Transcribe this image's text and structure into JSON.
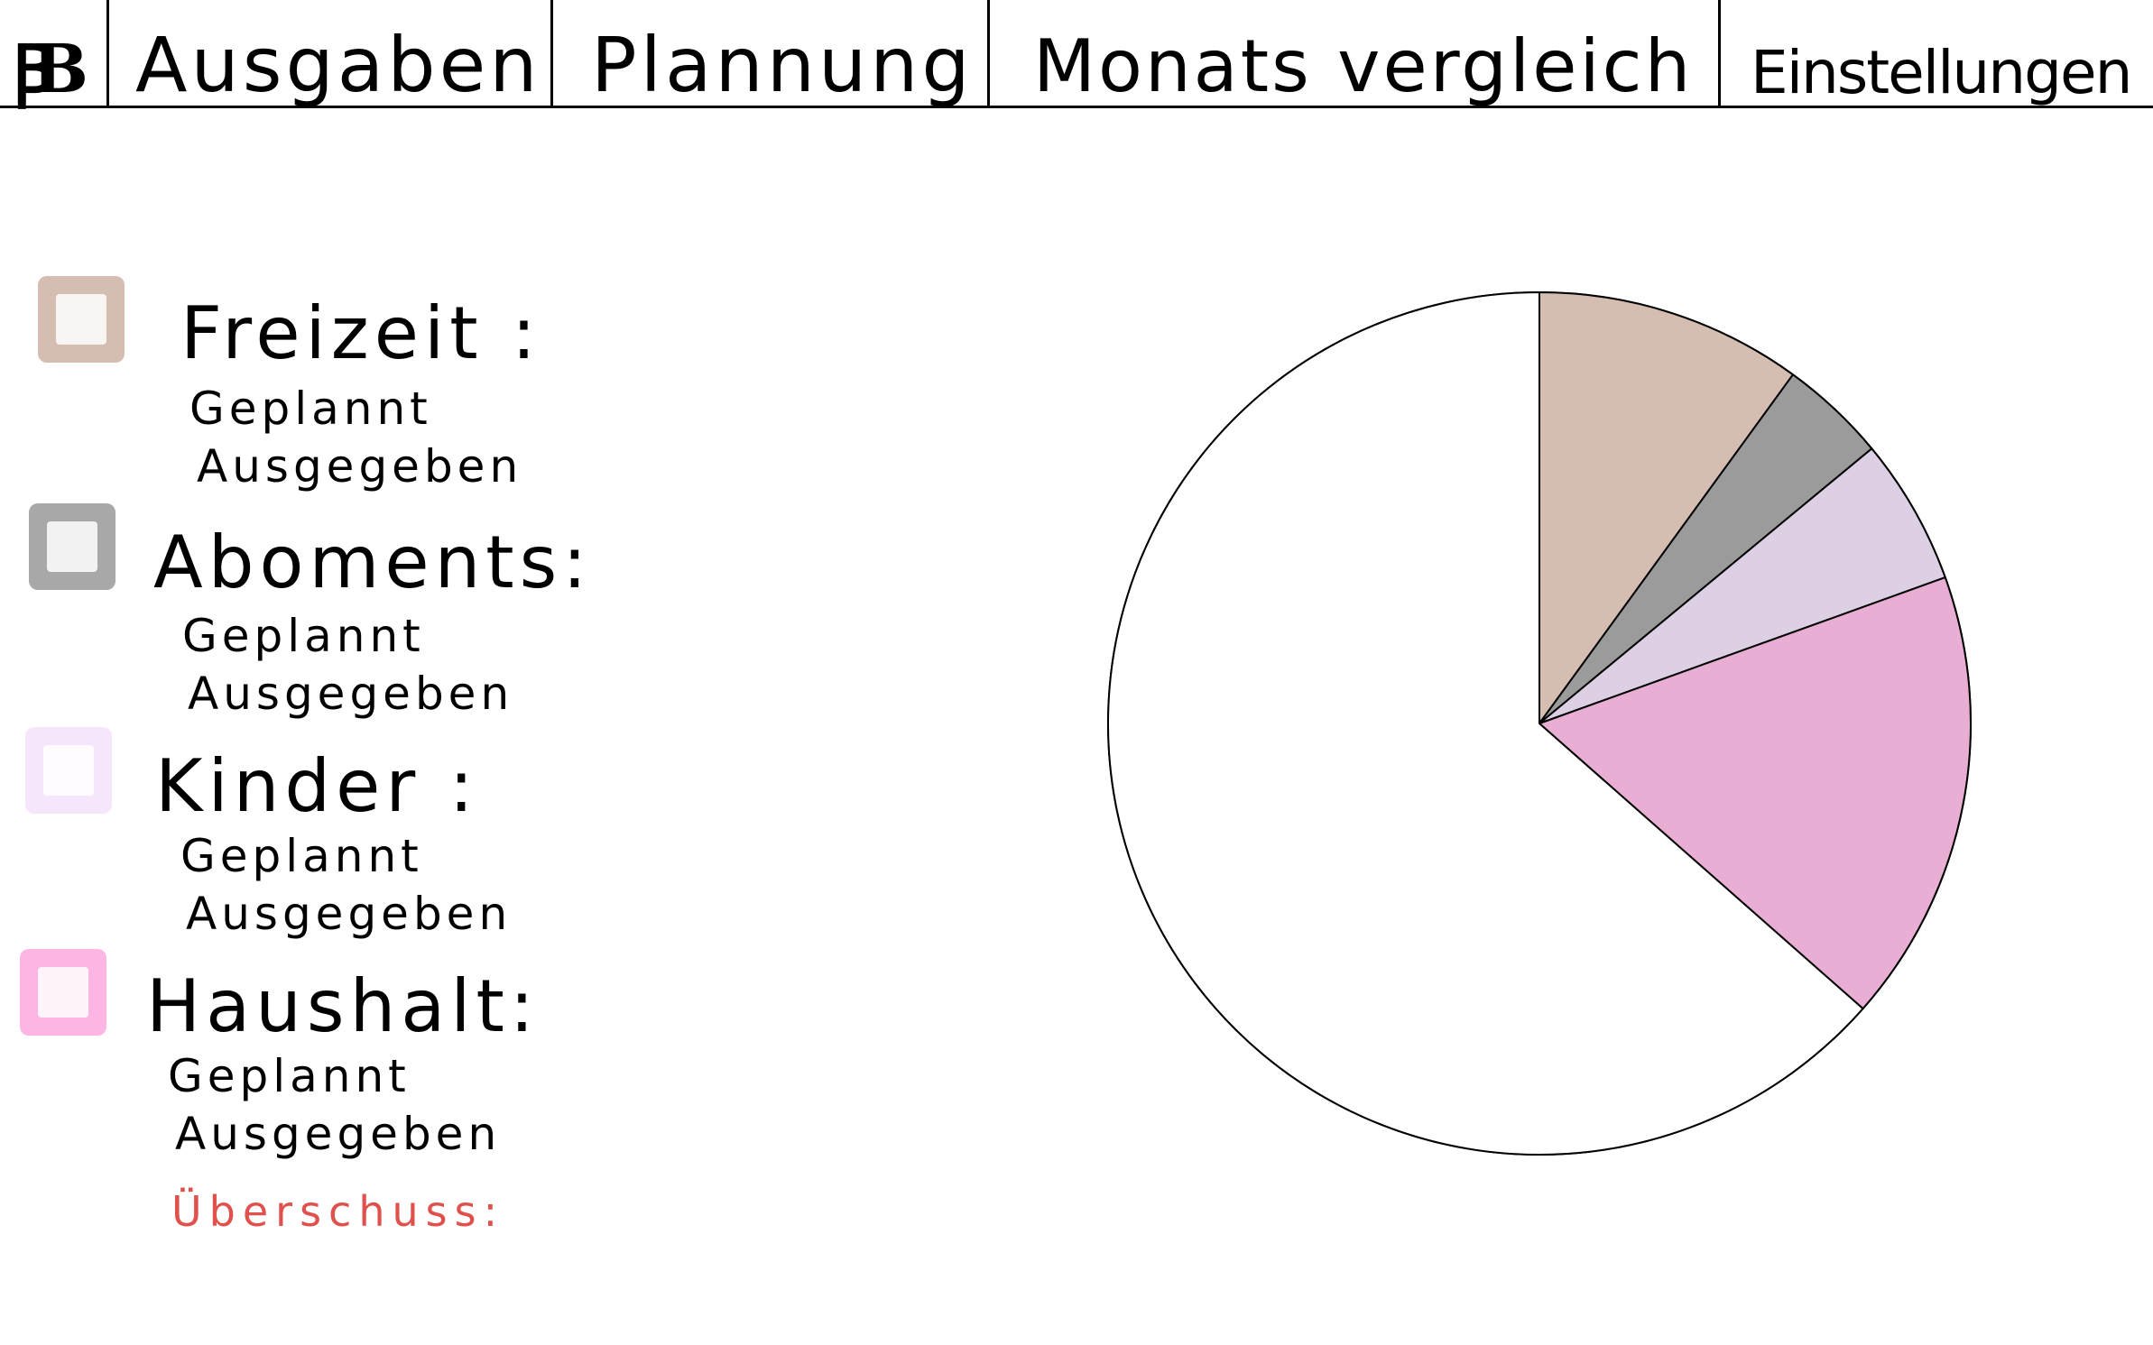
{
  "nav": {
    "logo": "ꞴB",
    "tabs": [
      {
        "label": "Ausgaben"
      },
      {
        "label": "Plannung"
      },
      {
        "label": "Monats vergleich"
      },
      {
        "label": "Einstellungen"
      }
    ]
  },
  "legend": {
    "items": [
      {
        "name": "Freizeit",
        "title": "Freizeit :",
        "color": "#d6bdb1",
        "planned_label": "Geplannt",
        "spent_label": "Ausgegeben"
      },
      {
        "name": "Aboments",
        "title": "Aboments:",
        "color": "#a8a8a8",
        "planned_label": "Geplannt",
        "spent_label": "Ausgegeben"
      },
      {
        "name": "Kinder",
        "title": "Kinder :",
        "color": "#f5e6fb",
        "planned_label": "Geplannt",
        "spent_label": "Ausgegeben"
      },
      {
        "name": "Haushalt",
        "title": "Haushalt:",
        "color": "#fdb6e4",
        "planned_label": "Geplannt",
        "spent_label": "Ausgegeben"
      }
    ],
    "surplus_label": "Überschuss:"
  },
  "chart_data": {
    "type": "pie",
    "title": "",
    "series": [
      {
        "name": "Freizeit",
        "percent": 10,
        "color": "#d6bdb1"
      },
      {
        "name": "Aboments",
        "percent": 4,
        "color": "#9b9b9b"
      },
      {
        "name": "Kinder",
        "percent": 5.5,
        "color": "#ddd0e4"
      },
      {
        "name": "Haushalt",
        "percent": 17,
        "color": "#e8aed4"
      },
      {
        "percent": 63.5,
        "color": "#ffffff"
      }
    ]
  }
}
